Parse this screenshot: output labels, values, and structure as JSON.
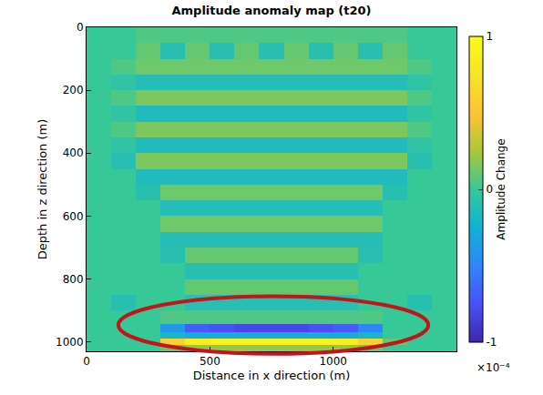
{
  "chart_data": {
    "type": "heatmap",
    "title": "Amplitude anomaly map (t20)",
    "x_label": "Distance in x direction (m)",
    "y_label": "Depth in z direction (m)",
    "xlim": [
      0,
      1500
    ],
    "ylim": [
      1030,
      0
    ],
    "xticks": [
      0,
      500,
      1000
    ],
    "yticks": [
      0,
      200,
      400,
      600,
      800,
      1000
    ],
    "x": [
      50,
      150,
      250,
      350,
      450,
      550,
      650,
      750,
      850,
      950,
      1050,
      1150,
      1250,
      1350,
      1450
    ],
    "y": [
      25,
      75,
      125,
      175,
      225,
      275,
      325,
      375,
      425,
      475,
      525,
      575,
      625,
      675,
      725,
      775,
      825,
      875,
      925,
      960,
      980,
      1000,
      1020
    ],
    "cells": [
      [
        0,
        0,
        0.05,
        0.05,
        0.05,
        0.05,
        0.05,
        0.05,
        0.05,
        0.05,
        0.05,
        0.05,
        0.05,
        0,
        0
      ],
      [
        0,
        0,
        0.1,
        -0.1,
        0.1,
        -0.1,
        0.1,
        -0.1,
        0.1,
        -0.1,
        0.1,
        -0.1,
        0.1,
        0,
        0
      ],
      [
        0,
        0.05,
        0.12,
        0.12,
        0.12,
        0.12,
        0.12,
        0.12,
        0.12,
        0.12,
        0.12,
        0.12,
        0.12,
        0.05,
        0
      ],
      [
        0,
        -0.05,
        -0.12,
        -0.12,
        -0.12,
        -0.12,
        -0.12,
        -0.12,
        -0.12,
        -0.12,
        -0.12,
        -0.12,
        -0.12,
        -0.05,
        0
      ],
      [
        0,
        0.05,
        0.15,
        0.15,
        0.15,
        0.15,
        0.15,
        0.15,
        0.15,
        0.15,
        0.15,
        0.15,
        0.15,
        0.05,
        0
      ],
      [
        0,
        -0.05,
        -0.15,
        -0.15,
        -0.15,
        -0.15,
        -0.15,
        -0.15,
        -0.15,
        -0.15,
        -0.15,
        -0.15,
        -0.15,
        -0.05,
        0
      ],
      [
        0,
        0.05,
        0.15,
        0.15,
        0.15,
        0.15,
        0.15,
        0.15,
        0.15,
        0.15,
        0.15,
        0.15,
        0.15,
        0.05,
        0
      ],
      [
        0,
        -0.05,
        -0.15,
        -0.15,
        -0.15,
        -0.15,
        -0.15,
        -0.15,
        -0.15,
        -0.15,
        -0.15,
        -0.15,
        -0.15,
        -0.05,
        0
      ],
      [
        0,
        -0.1,
        0.15,
        0.15,
        0.15,
        0.15,
        0.15,
        0.15,
        0.15,
        0.15,
        0.15,
        0.15,
        0.15,
        -0.1,
        0
      ],
      [
        0,
        0,
        -0.15,
        -0.15,
        -0.15,
        -0.15,
        -0.15,
        -0.15,
        -0.15,
        -0.15,
        -0.15,
        -0.15,
        -0.15,
        0,
        0
      ],
      [
        0,
        0,
        -0.1,
        0.12,
        0.12,
        0.12,
        0.12,
        0.12,
        0.12,
        0.12,
        0.12,
        0.12,
        -0.1,
        0,
        0
      ],
      [
        0,
        0,
        0,
        -0.12,
        -0.12,
        -0.12,
        -0.12,
        -0.12,
        -0.12,
        -0.12,
        -0.12,
        -0.12,
        0,
        0,
        0
      ],
      [
        0,
        0,
        0,
        0.12,
        0.12,
        0.12,
        0.12,
        0.12,
        0.12,
        0.12,
        0.12,
        0.12,
        0,
        0,
        0
      ],
      [
        0,
        0,
        0,
        -0.12,
        -0.12,
        -0.12,
        -0.12,
        -0.12,
        -0.12,
        -0.12,
        -0.12,
        -0.12,
        0,
        0,
        0
      ],
      [
        0,
        0,
        0,
        -0.1,
        0.1,
        0.1,
        0.1,
        0.1,
        0.1,
        0.1,
        0.1,
        -0.1,
        0,
        0,
        0
      ],
      [
        0,
        0,
        0,
        0,
        -0.1,
        -0.1,
        -0.1,
        -0.1,
        -0.1,
        -0.1,
        -0.1,
        0,
        0,
        0,
        0
      ],
      [
        0,
        0,
        0,
        0,
        0.1,
        0.1,
        0.1,
        0.1,
        0.1,
        0.1,
        0.1,
        0,
        0,
        0,
        0
      ],
      [
        0,
        -0.1,
        0,
        0,
        -0.1,
        -0.1,
        -0.1,
        -0.1,
        -0.1,
        -0.1,
        -0.1,
        0,
        0,
        -0.1,
        0
      ],
      [
        0,
        0,
        0,
        0.05,
        0.05,
        0.05,
        0.05,
        0.05,
        0.05,
        0.05,
        0.05,
        0.05,
        0,
        0,
        0
      ],
      [
        0,
        0,
        0,
        -0.4,
        -0.7,
        -0.75,
        -0.8,
        -0.8,
        -0.8,
        -0.75,
        -0.7,
        -0.5,
        0,
        0,
        0
      ],
      [
        0,
        0,
        0,
        -0.2,
        -0.3,
        -0.3,
        -0.3,
        -0.3,
        -0.3,
        -0.3,
        -0.3,
        -0.2,
        0,
        0,
        0
      ],
      [
        0,
        0,
        0,
        0.6,
        0.85,
        0.9,
        0.9,
        0.9,
        0.9,
        0.9,
        0.85,
        0.6,
        0.1,
        0,
        0
      ],
      [
        0,
        0,
        0,
        0.1,
        0.2,
        0.2,
        0.2,
        0.2,
        0.2,
        0.2,
        0.2,
        0.1,
        0,
        0,
        0
      ]
    ],
    "colorbar": {
      "label": "Amplitude Change",
      "range": [
        -1,
        1
      ],
      "ticks": [
        -1,
        0,
        1
      ],
      "exponent_label": "×10⁻⁴"
    }
  }
}
